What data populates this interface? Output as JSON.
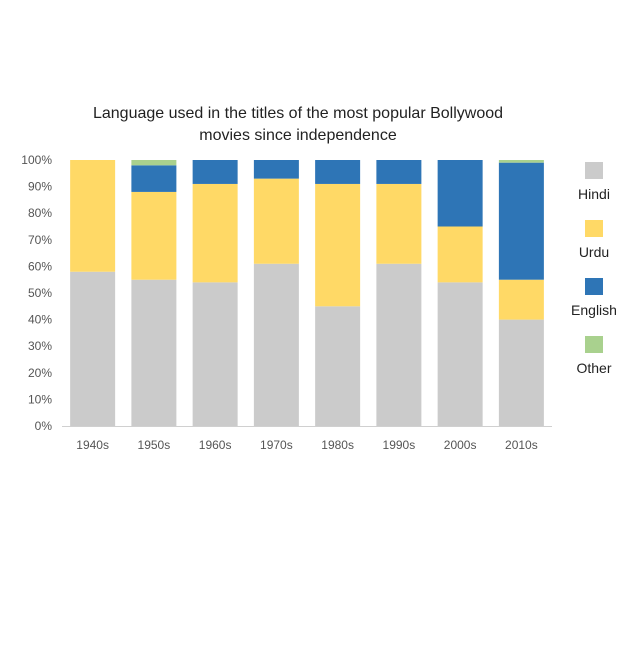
{
  "chart_data": {
    "type": "bar",
    "stacked": true,
    "title": "Language used in the titles of the most popular Bollywood movies since independence",
    "title_lines": [
      "Language used in the titles of the most popular Bollywood",
      "movies since independence"
    ],
    "xlabel": "",
    "ylabel": "",
    "ylim": [
      0,
      100
    ],
    "y_unit": "%",
    "yticks": [
      "0%",
      "10%",
      "20%",
      "30%",
      "40%",
      "50%",
      "60%",
      "70%",
      "80%",
      "90%",
      "100%"
    ],
    "grid": false,
    "legend_position": "right",
    "categories": [
      "1940s",
      "1950s",
      "1960s",
      "1970s",
      "1980s",
      "1990s",
      "2000s",
      "2010s"
    ],
    "series": [
      {
        "name": "Hindi",
        "color": "#cbcbcb",
        "values": [
          58,
          55,
          54,
          61,
          45,
          61,
          54,
          40
        ]
      },
      {
        "name": "Urdu",
        "color": "#ffd966",
        "values": [
          42,
          33,
          37,
          32,
          46,
          30,
          21,
          15
        ]
      },
      {
        "name": "English",
        "color": "#2e75b6",
        "values": [
          0,
          10,
          9,
          7,
          9,
          9,
          25,
          44
        ]
      },
      {
        "name": "Other",
        "color": "#a9d18e",
        "values": [
          0,
          2,
          0,
          0,
          0,
          0,
          0,
          1
        ]
      }
    ]
  }
}
